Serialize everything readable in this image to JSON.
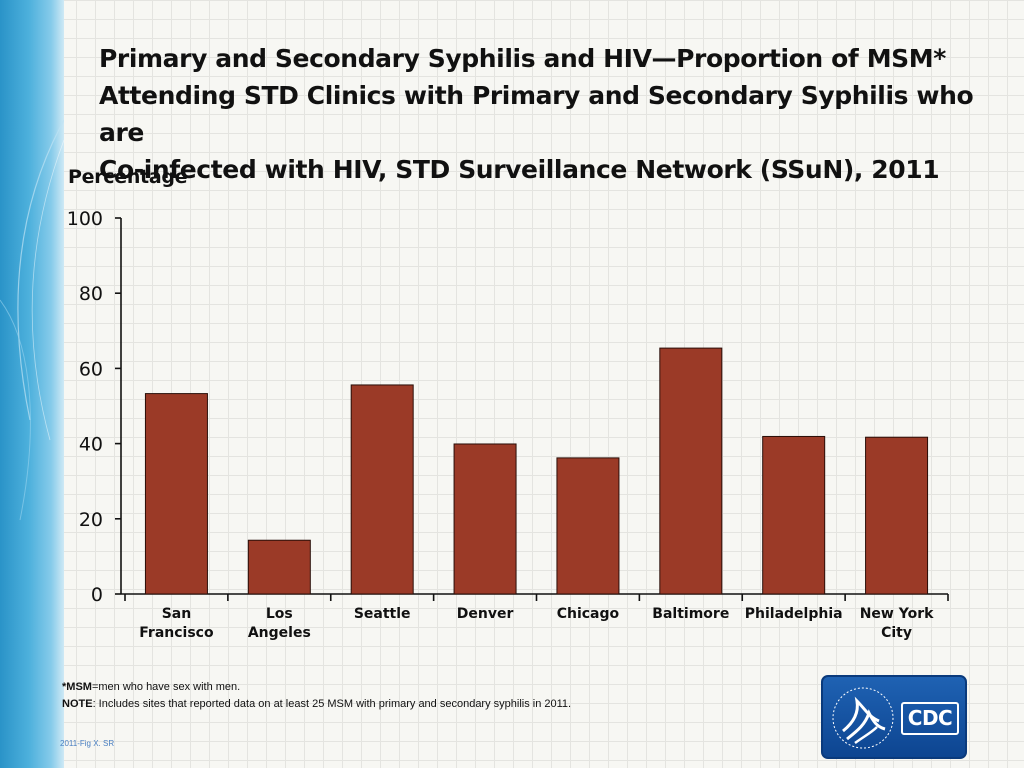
{
  "slide": {
    "title_lines": [
      "Primary and Secondary Syphilis and HIV—Proportion of MSM*",
      "Attending STD Clinics with Primary and Secondary Syphilis who are",
      "Co-infected with HIV, STD Surveillance Network (SSuN), 2011"
    ],
    "footnote_msm_bold": "*MSM",
    "footnote_msm_text": "=men who have sex with men.",
    "footnote_note_bold": "NOTE",
    "footnote_note_text": ": Includes sites that reported data on at least 25 MSM with primary and secondary syphilis in 2011.",
    "fig_id": "2011-Fig X.  SR",
    "logo_text": "CDC"
  },
  "colors": {
    "bar": "#9b3a27",
    "bar_outline": "#2a0e08",
    "sidebar": "#3aa3d4",
    "logo": "#1a56a8"
  },
  "chart_data": {
    "type": "bar",
    "title": "Primary and Secondary Syphilis and HIV—Proportion of MSM* Attending STD Clinics with Primary and Secondary Syphilis who are Co-infected with HIV, STD Surveillance Network (SSuN), 2011",
    "ylabel": "Percentage",
    "xlabel": "",
    "ylim": [
      0,
      100
    ],
    "yticks": [
      0,
      20,
      40,
      60,
      80,
      100
    ],
    "categories": [
      [
        "San",
        "Francisco"
      ],
      [
        "Los",
        "Angeles"
      ],
      [
        "Seattle"
      ],
      [
        "Denver"
      ],
      [
        "Chicago"
      ],
      [
        "Baltimore"
      ],
      [
        "Philadelphia"
      ],
      [
        "New York",
        "City"
      ]
    ],
    "values": [
      53.3,
      14.3,
      55.6,
      39.9,
      36.2,
      65.4,
      41.9,
      41.7
    ],
    "grid": false,
    "legend": "none"
  }
}
